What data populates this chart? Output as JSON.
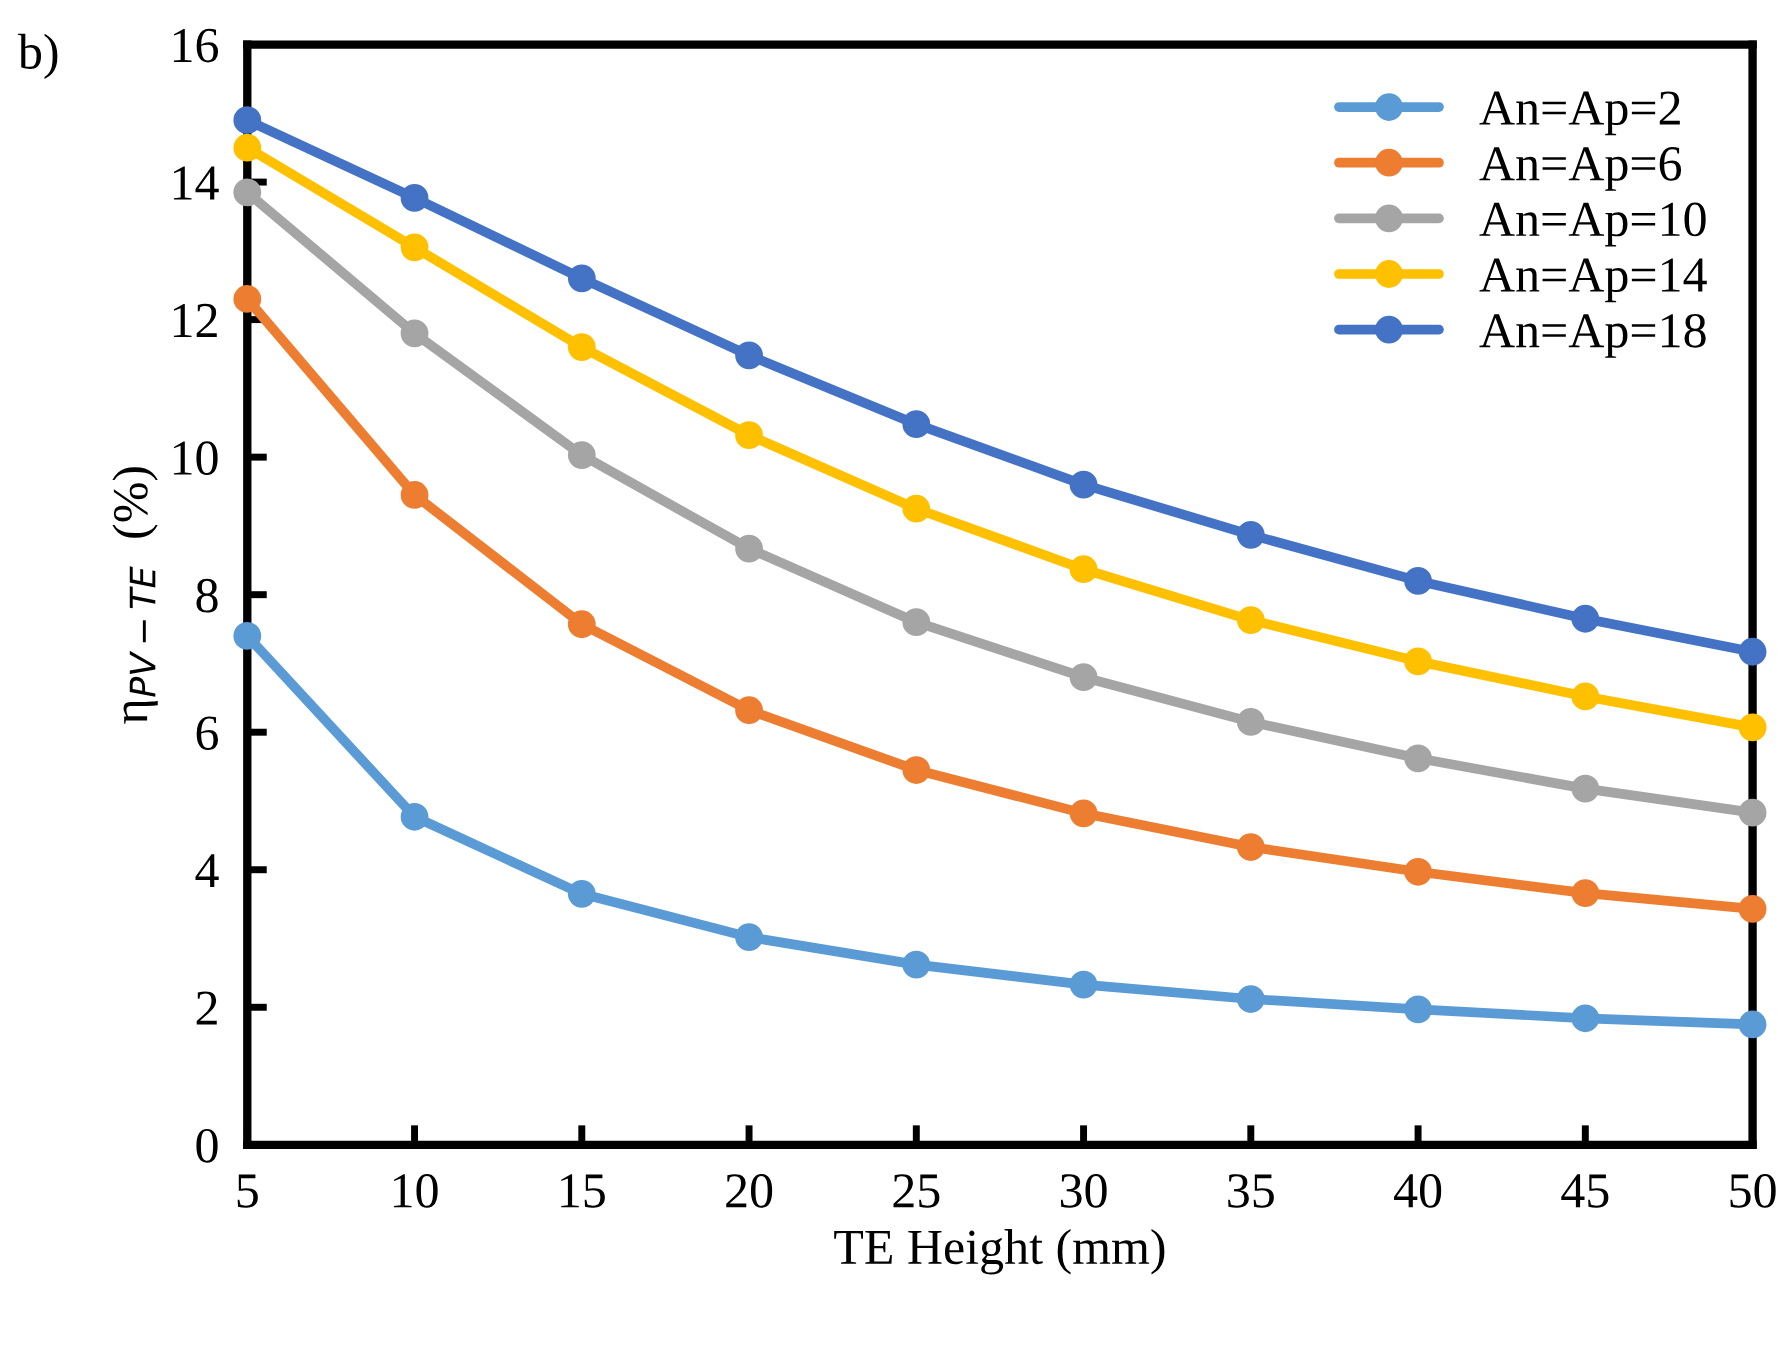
{
  "chart_data": {
    "type": "line",
    "xlabel": "TE Height (mm)",
    "ylabel": "η$_{PV−TE}$  (%)",
    "annotations": [
      "b)"
    ],
    "x": [
      5,
      10,
      15,
      20,
      25,
      30,
      35,
      40,
      45,
      50
    ],
    "xlim": [
      5,
      50
    ],
    "xticks": [
      5,
      10,
      15,
      20,
      25,
      30,
      35,
      40,
      45,
      50
    ],
    "ylim": [
      0,
      16
    ],
    "yticks": [
      0,
      2,
      4,
      6,
      8,
      10,
      12,
      14,
      16
    ],
    "marker": "circle",
    "line_style": "solid",
    "grid": false,
    "legend": "top right",
    "series": [
      {
        "name": "An=Ap=2",
        "color": "#5b9bd5",
        "values": [
          7.4,
          4.77,
          3.65,
          3.02,
          2.62,
          2.33,
          2.12,
          1.97,
          1.84,
          1.75
        ]
      },
      {
        "name": "An=Ap=6",
        "color": "#ed7d31",
        "values": [
          12.3,
          9.45,
          7.57,
          6.32,
          5.45,
          4.82,
          4.33,
          3.97,
          3.66,
          3.43
        ]
      },
      {
        "name": "An=Ap=10",
        "color": "#a5a5a5",
        "values": [
          13.85,
          11.8,
          10.03,
          8.67,
          7.6,
          6.8,
          6.15,
          5.62,
          5.18,
          4.83
        ]
      },
      {
        "name": "An=Ap=14",
        "color": "#ffc000",
        "values": [
          14.5,
          13.05,
          11.6,
          10.32,
          9.25,
          8.37,
          7.63,
          7.03,
          6.52,
          6.07
        ]
      },
      {
        "name": "An=Ap=18",
        "color": "#4472c4",
        "values": [
          14.9,
          13.77,
          12.6,
          11.48,
          10.48,
          9.6,
          8.87,
          8.2,
          7.65,
          7.17
        ]
      }
    ]
  }
}
